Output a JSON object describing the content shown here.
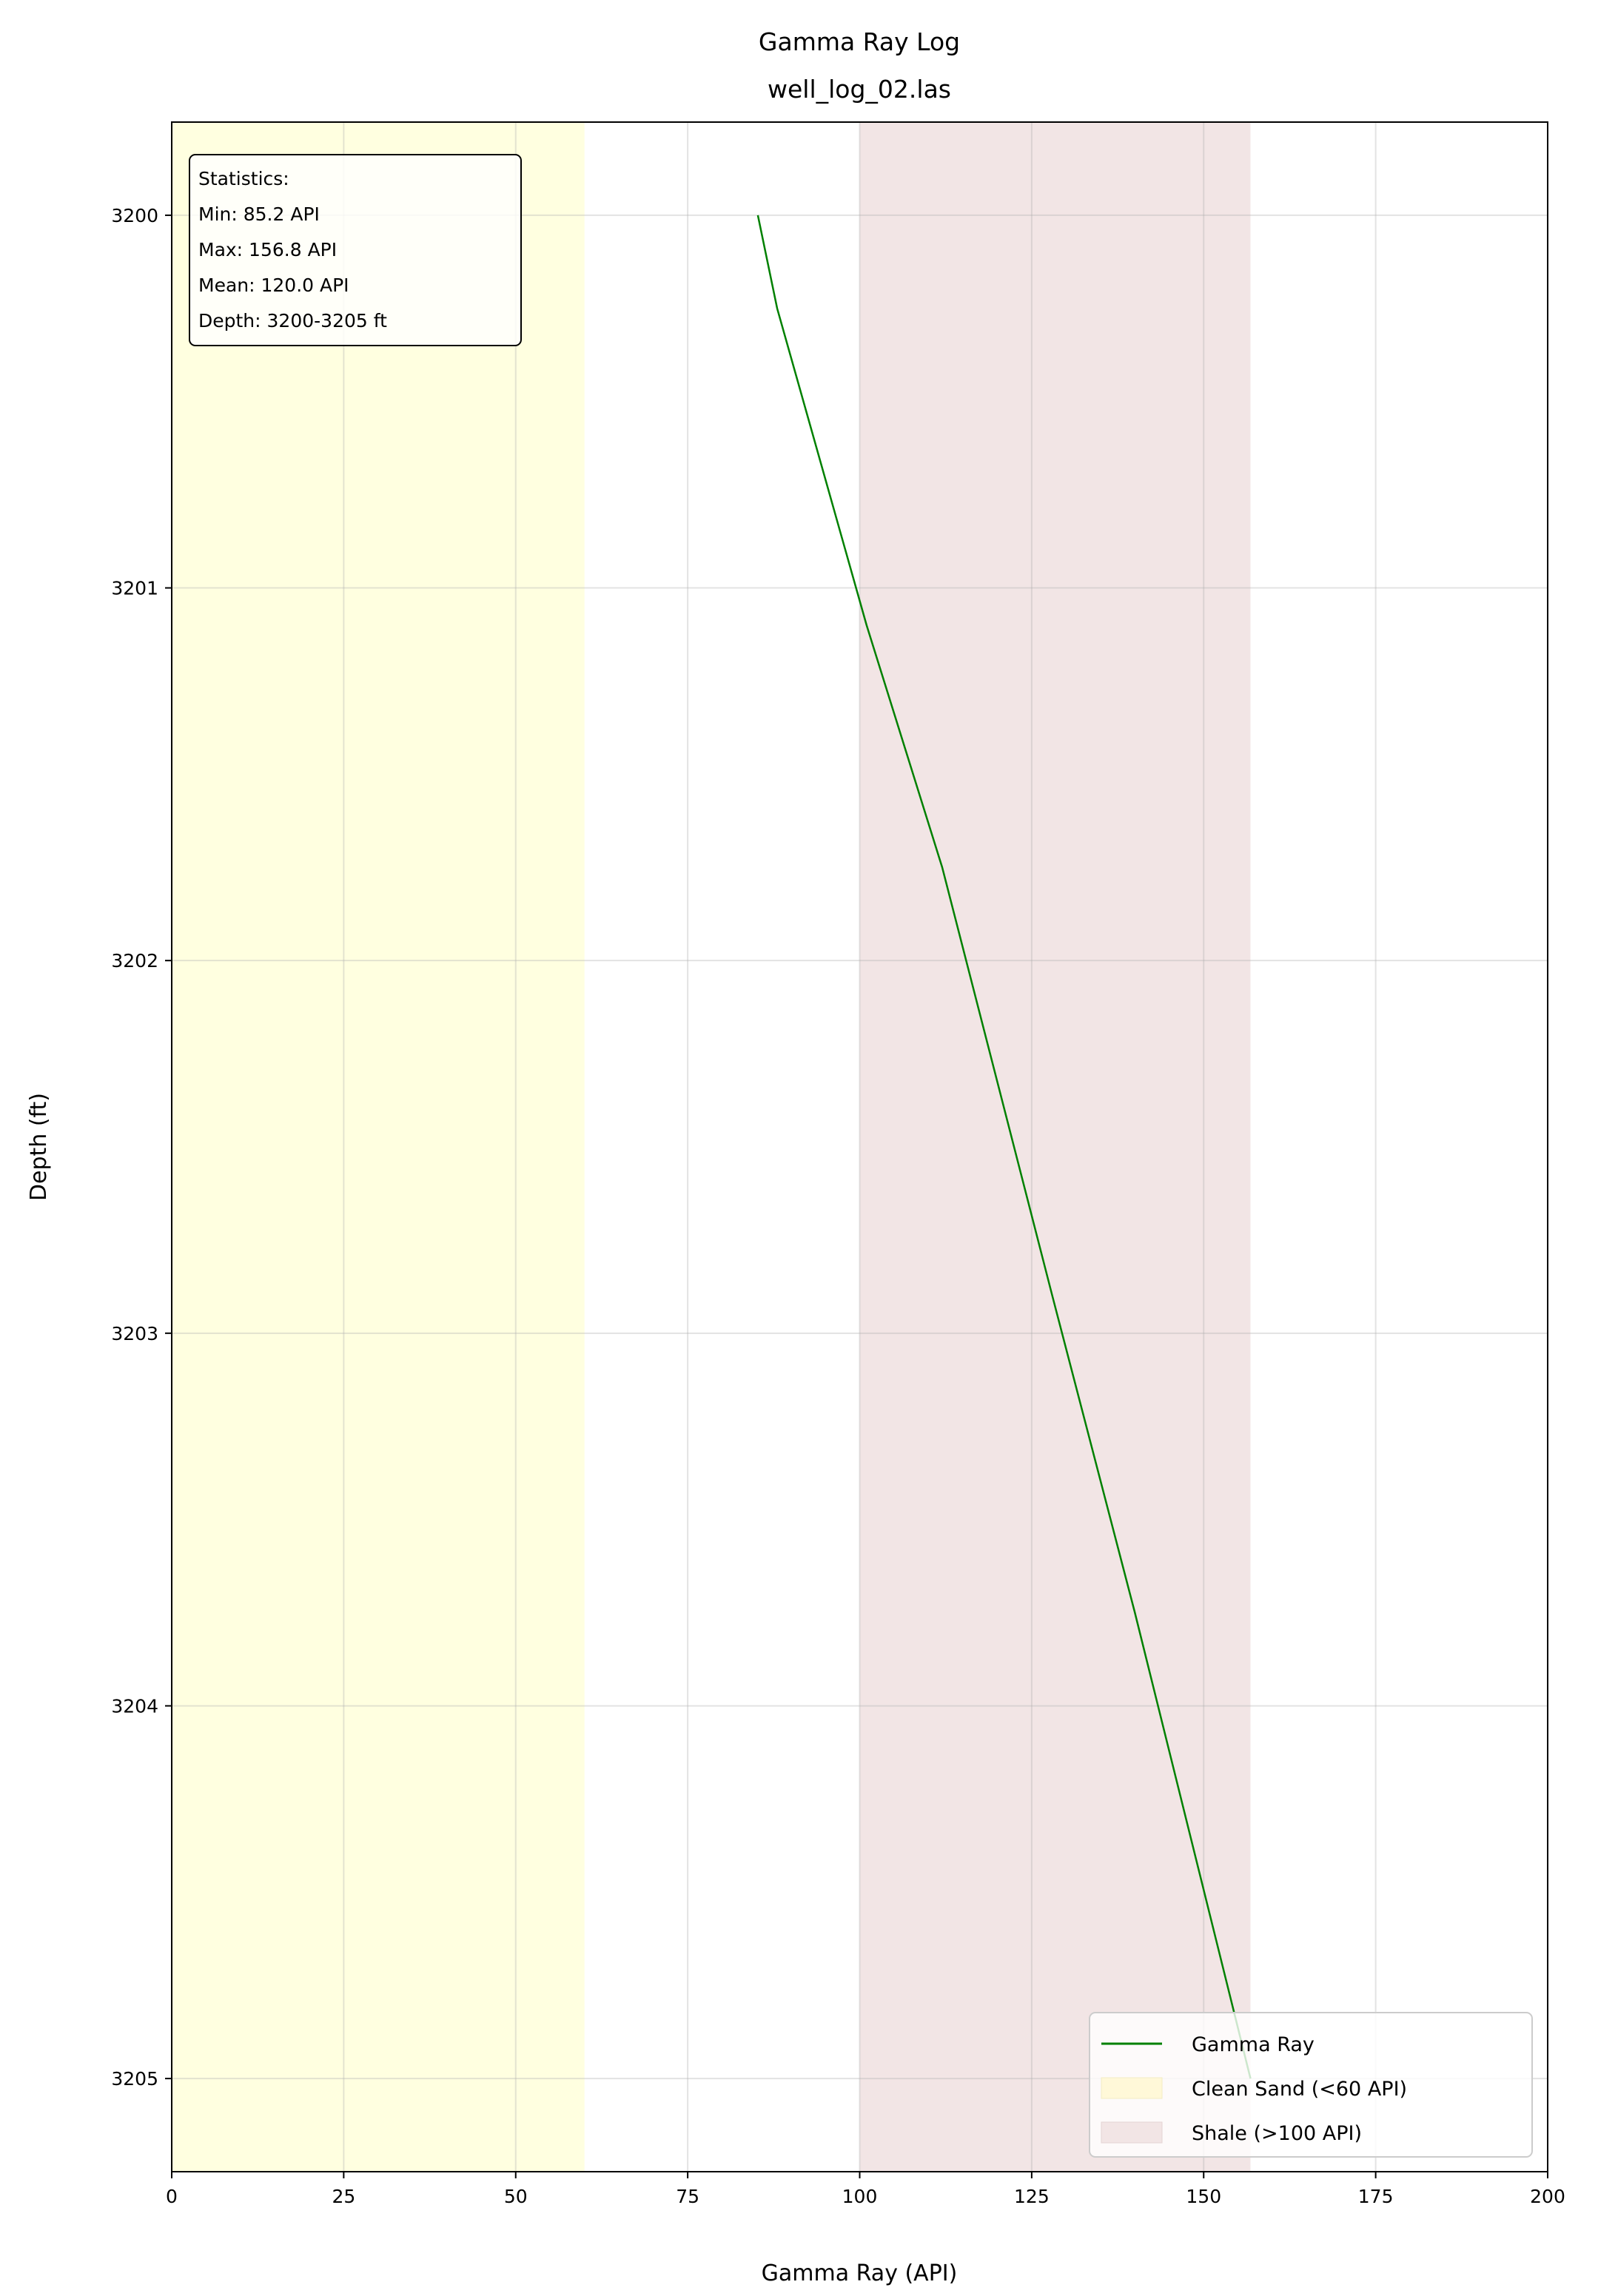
{
  "chart_data": {
    "type": "line",
    "title": "Gamma Ray Log",
    "subtitle": "well_log_02.las",
    "xlabel": "Gamma Ray (API)",
    "ylabel": "Depth (ft)",
    "xlim": [
      0,
      200
    ],
    "ylim": [
      3205.25,
      3199.75
    ],
    "y_inverted": true,
    "xticks": [
      0,
      25,
      50,
      75,
      100,
      125,
      150,
      175,
      200
    ],
    "yticks": [
      3200,
      3201,
      3202,
      3203,
      3204,
      3205
    ],
    "grid": true,
    "series": [
      {
        "name": "Gamma Ray",
        "color": "#008000",
        "points": [
          {
            "x": 85.2,
            "y": 3200.0
          },
          {
            "x": 88.0,
            "y": 3200.25
          },
          {
            "x": 101.0,
            "y": 3201.1
          },
          {
            "x": 112.0,
            "y": 3201.75
          },
          {
            "x": 128.0,
            "y": 3202.9
          },
          {
            "x": 140.0,
            "y": 3203.75
          },
          {
            "x": 156.8,
            "y": 3205.0
          }
        ]
      }
    ],
    "bands": [
      {
        "name": "Clean Sand (<60 API)",
        "x0": 0,
        "x1": 60,
        "color": "#ffffe0"
      },
      {
        "name": "Shale (>100 API)",
        "x0": 100,
        "x1": 156.8,
        "color": "#f2e5e5"
      }
    ],
    "stats_box": {
      "lines": [
        "Statistics:",
        "Min: 85.2 API",
        "Max: 156.8 API",
        "Mean: 120.0 API",
        "Depth: 3200-3205 ft"
      ]
    },
    "legend": {
      "position": "lower-right",
      "entries": [
        "Gamma Ray",
        "Clean Sand (<60 API)",
        "Shale (>100 API)"
      ]
    }
  }
}
